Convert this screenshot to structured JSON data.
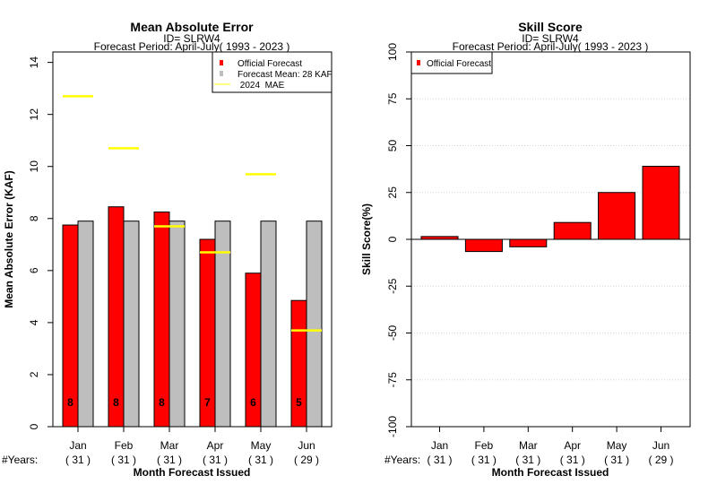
{
  "chart_data": [
    {
      "type": "bar",
      "title": "Mean Absolute Error",
      "subtitle_id": "ID= SLRW4",
      "subtitle_period": "Forecast Period: April-July( 1993 - 2023 )",
      "xlabel": "Month Forecast Issued",
      "ylabel": "Mean Absolute Error (KAF)",
      "ylim": [
        0,
        14.4
      ],
      "yticks": [
        0,
        2,
        4,
        6,
        8,
        10,
        12,
        14
      ],
      "categories": [
        "Jan",
        "Feb",
        "Mar",
        "Apr",
        "May",
        "Jun"
      ],
      "years_label": "#Years:",
      "years": [
        "( 31 )",
        "( 31 )",
        "( 31 )",
        "( 31 )",
        "( 31 )",
        "( 29 )"
      ],
      "bar_labels": [
        "8",
        "8",
        "8",
        "7",
        "6",
        "5"
      ],
      "series": [
        {
          "name": "Official Forecast",
          "color": "#ff0000",
          "values": [
            7.75,
            8.45,
            8.25,
            7.2,
            5.9,
            4.85
          ]
        },
        {
          "name": "Forecast Mean: 28 KAF",
          "color": "#bebebe",
          "values": [
            7.9,
            7.9,
            7.9,
            7.9,
            7.9,
            7.9
          ]
        }
      ],
      "mae_2024": {
        "name": " 2024  MAE",
        "color": "#ffff00",
        "values": [
          12.7,
          10.7,
          7.7,
          6.7,
          9.7,
          3.7
        ]
      },
      "legend_position": "top-right",
      "grid": false
    },
    {
      "type": "bar",
      "title": "Skill Score",
      "subtitle_id": "ID= SLRW4",
      "subtitle_period": "Forecast Period: April-July( 1993 - 2023 )",
      "xlabel": "Month Forecast Issued",
      "ylabel": "Skill Score(%)",
      "ylim": [
        -100,
        100
      ],
      "yticks": [
        -100,
        -75,
        -50,
        -25,
        0,
        25,
        50,
        75,
        100
      ],
      "categories": [
        "Jan",
        "Feb",
        "Mar",
        "Apr",
        "May",
        "Jun"
      ],
      "years_label": "#Years:",
      "years": [
        "( 31 )",
        "( 31 )",
        "( 31 )",
        "( 31 )",
        "( 31 )",
        "( 29 )"
      ],
      "series": [
        {
          "name": "Official Forecast",
          "color": "#ff0000",
          "values": [
            1.5,
            -6.5,
            -4,
            9,
            25,
            39
          ]
        }
      ],
      "legend_position": "top-left",
      "grid": true
    }
  ]
}
